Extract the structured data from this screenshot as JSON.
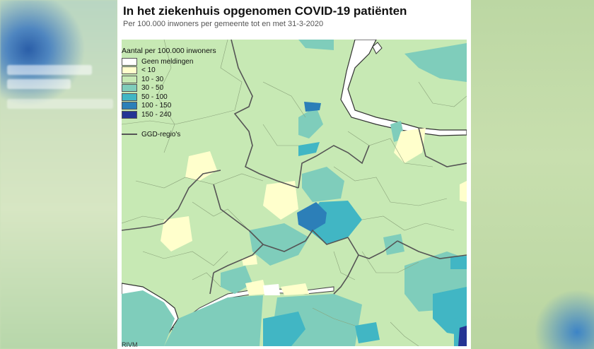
{
  "title": "In het ziekenhuis opgenomen COVID-19 patiënten",
  "subtitle": "Per 100.000 inwoners per gemeente tot en met 31-3-2020",
  "legend": {
    "title": "Aantal per 100.000 inwoners",
    "classes": [
      {
        "label": "Geen meldingen",
        "color": "#ffffff"
      },
      {
        "label": "< 10",
        "color": "#ffffcc"
      },
      {
        "label": "10 - 30",
        "color": "#c7e9b4"
      },
      {
        "label": "30 - 50",
        "color": "#7fcdbb"
      },
      {
        "label": "50 - 100",
        "color": "#41b6c4"
      },
      {
        "label": "100 - 150",
        "color": "#2c7fb8"
      },
      {
        "label": "150 - 240",
        "color": "#253494"
      }
    ],
    "region_line_label": "GGD-regio's"
  },
  "source": "RIVM",
  "colors": {
    "water": "#ffffff",
    "boundary": "#555555"
  }
}
